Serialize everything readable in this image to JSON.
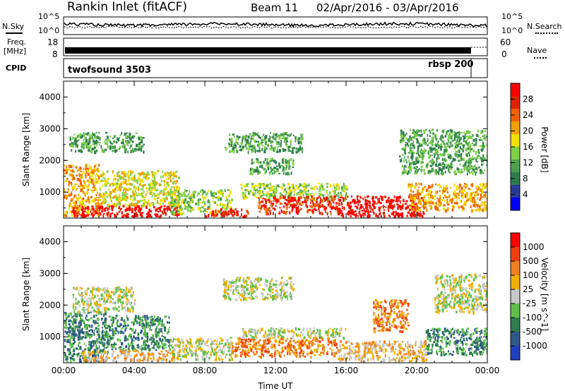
{
  "header": {
    "site": "Rankin Inlet (fitACF)",
    "beam": "Beam 11",
    "dates": "02/Apr/2016 - 03/Apr/2016"
  },
  "summary": {
    "nsky_label": "N.Sky",
    "nsearch_label": "N.Search",
    "nsky_ticks": [
      "10^5",
      "10^0"
    ],
    "nsearch_ticks": [
      "10^5",
      "10^0"
    ],
    "freq_label_1": "Freq.",
    "freq_label_2": "[MHz]",
    "freq_ticks": [
      "18",
      "8"
    ],
    "nave_label": "Nave",
    "nave_ticks": [
      "60",
      "0"
    ],
    "cpid_label": "CPID",
    "cpid_1": "twofsound 3503",
    "cpid_2": "rbsp 200"
  },
  "chart_data": [
    {
      "type": "heatmap",
      "title": "",
      "xlabel": "",
      "ylabel": "Slant Range [km]",
      "xlim": [
        0,
        24
      ],
      "ylim": [
        180,
        4500
      ],
      "yticks": [
        1000,
        2000,
        3000,
        4000
      ],
      "colorbar_label": "Power [dB]",
      "colorbar_ticks": [
        "28",
        "24",
        "20",
        "16",
        "12",
        "8",
        "4"
      ],
      "colors": [
        "#0000ff",
        "#283c96",
        "#2e7d4f",
        "#4ea24f",
        "#7fd146",
        "#f2e000",
        "#f0a000",
        "#f06000",
        "#e02000",
        "#ff0000"
      ],
      "blobs": [
        {
          "t0": 0.0,
          "t1": 2.0,
          "r0": 250,
          "r1": 1900,
          "level": 6
        },
        {
          "t0": 0.5,
          "t1": 6.5,
          "r0": 250,
          "r1": 600,
          "level": 9
        },
        {
          "t0": 2.0,
          "t1": 6.5,
          "r0": 600,
          "r1": 1700,
          "level": 5
        },
        {
          "t0": 0.3,
          "t1": 4.5,
          "r0": 2300,
          "r1": 2900,
          "level": 3
        },
        {
          "t0": 6.0,
          "t1": 9.5,
          "r0": 350,
          "r1": 1100,
          "level": 4
        },
        {
          "t0": 8.0,
          "t1": 10.5,
          "r0": 250,
          "r1": 500,
          "level": 8
        },
        {
          "t0": 10.0,
          "t1": 16.0,
          "r0": 800,
          "r1": 1300,
          "level": 4
        },
        {
          "t0": 11.0,
          "t1": 15.5,
          "r0": 350,
          "r1": 900,
          "level": 8
        },
        {
          "t0": 15.5,
          "t1": 20.5,
          "r0": 250,
          "r1": 900,
          "level": 9
        },
        {
          "t0": 19.5,
          "t1": 24.0,
          "r0": 450,
          "r1": 1300,
          "level": 6
        },
        {
          "t0": 9.0,
          "t1": 13.5,
          "r0": 2300,
          "r1": 2900,
          "level": 3
        },
        {
          "t0": 19.0,
          "t1": 24.0,
          "r0": 1600,
          "r1": 3000,
          "level": 3
        },
        {
          "t0": 10.5,
          "t1": 13.0,
          "r0": 1600,
          "r1": 2100,
          "level": 3
        }
      ]
    },
    {
      "type": "heatmap",
      "title": "",
      "xlabel": "Time UT",
      "ylabel": "Slant Range [km]",
      "xlim": [
        0,
        24
      ],
      "ylim": [
        180,
        4500
      ],
      "xticks": [
        "00:00",
        "04:00",
        "08:00",
        "12:00",
        "16:00",
        "20:00",
        "00:00"
      ],
      "yticks": [
        1000,
        2000,
        3000,
        4000
      ],
      "colorbar_label": "Velocity [m s^-1]",
      "colorbar_ticks": [
        "1000",
        "500",
        "100",
        "25",
        "-25",
        "-100",
        "-500",
        "-1000"
      ],
      "colors": [
        "#2040c0",
        "#305a8a",
        "#2e7d4f",
        "#5ec04a",
        "#c8c8c8",
        "#f0b000",
        "#f08020",
        "#f04010",
        "#ff0000"
      ],
      "blobs": [
        {
          "t0": 0.0,
          "t1": 2.5,
          "r0": 250,
          "r1": 1800,
          "level": 2
        },
        {
          "t0": 0.5,
          "t1": 4.0,
          "r0": 1800,
          "r1": 2600,
          "level": 4
        },
        {
          "t0": 2.5,
          "t1": 6.0,
          "r0": 600,
          "r1": 1700,
          "level": 2
        },
        {
          "t0": 1.0,
          "t1": 6.5,
          "r0": 250,
          "r1": 600,
          "level": 5
        },
        {
          "t0": 6.0,
          "t1": 9.5,
          "r0": 300,
          "r1": 1000,
          "level": 4
        },
        {
          "t0": 9.5,
          "t1": 15.5,
          "r0": 400,
          "r1": 1000,
          "level": 6
        },
        {
          "t0": 10.0,
          "t1": 16.0,
          "r0": 1000,
          "r1": 1300,
          "level": 4
        },
        {
          "t0": 15.5,
          "t1": 20.5,
          "r0": 250,
          "r1": 900,
          "level": 5
        },
        {
          "t0": 20.5,
          "t1": 24.0,
          "r0": 450,
          "r1": 1300,
          "level": 2
        },
        {
          "t0": 9.0,
          "t1": 13.0,
          "r0": 2200,
          "r1": 2900,
          "level": 4
        },
        {
          "t0": 21.0,
          "t1": 24.0,
          "r0": 1800,
          "r1": 3000,
          "level": 4
        },
        {
          "t0": 17.5,
          "t1": 19.5,
          "r0": 1200,
          "r1": 2200,
          "level": 6
        }
      ]
    }
  ]
}
